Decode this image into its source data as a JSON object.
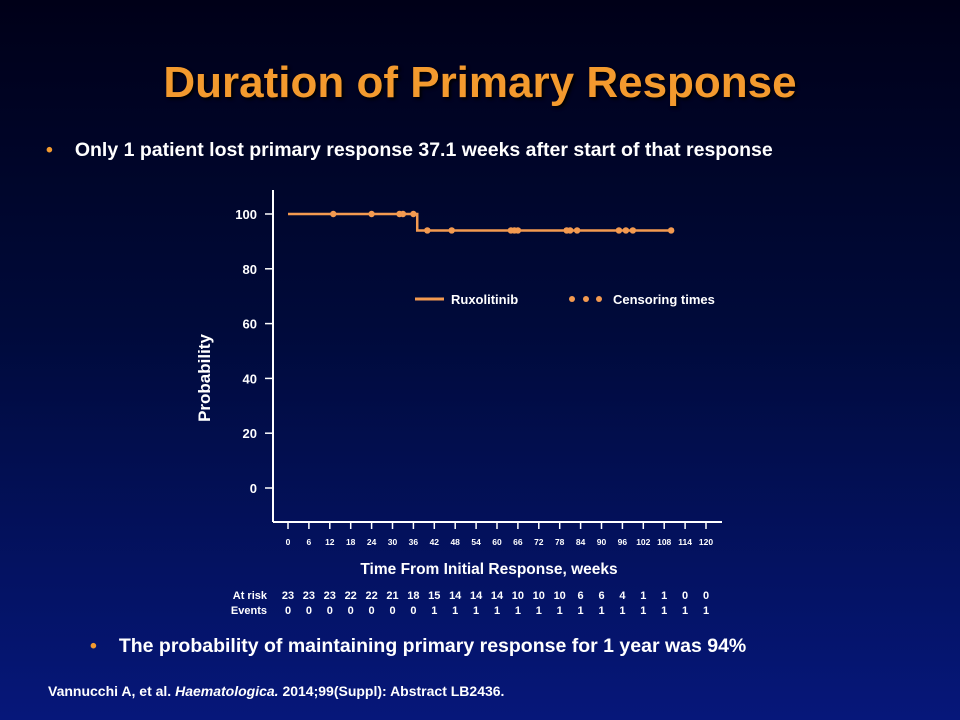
{
  "slide": {
    "title": "Duration of Primary Response",
    "bullet_top": "Only 1 patient lost primary response 37.1 weeks after start of that response",
    "bullet_bottom": "The probability of maintaining primary response for 1 year was 94%",
    "bullet_glyph": "•",
    "citation": {
      "authors": "Vannucchi A, et al. ",
      "journal": "Haematologica.",
      "rest": " 2014;99(Suppl): Abstract LB2436."
    }
  },
  "chart_data": {
    "type": "line",
    "title": "",
    "xlabel": "Time From Initial Response, weeks",
    "ylabel": "Probability",
    "xlim": [
      0,
      120
    ],
    "ylim": [
      0,
      100
    ],
    "x_ticks": [
      0,
      6,
      12,
      18,
      24,
      30,
      36,
      42,
      48,
      54,
      60,
      66,
      72,
      78,
      84,
      90,
      96,
      102,
      108,
      114,
      120
    ],
    "y_ticks": [
      0,
      20,
      40,
      60,
      80,
      100
    ],
    "grid": false,
    "line_color": "#f39a50",
    "legend": {
      "position": "top-right",
      "line_label": "Ruxolitinib",
      "censor_label": "Censoring times"
    },
    "series": [
      {
        "name": "Ruxolitinib",
        "step_points": [
          [
            0,
            100
          ],
          [
            37.1,
            100
          ],
          [
            37.1,
            94
          ],
          [
            110,
            94
          ]
        ],
        "censor_times": [
          [
            13,
            100
          ],
          [
            24,
            100
          ],
          [
            32,
            100
          ],
          [
            33,
            100
          ],
          [
            36,
            100
          ],
          [
            40,
            94
          ],
          [
            47,
            94
          ],
          [
            64,
            94
          ],
          [
            65,
            94
          ],
          [
            66,
            94
          ],
          [
            80,
            94
          ],
          [
            81,
            94
          ],
          [
            83,
            94
          ],
          [
            95,
            94
          ],
          [
            97,
            94
          ],
          [
            99,
            94
          ],
          [
            110,
            94
          ]
        ]
      }
    ],
    "risk_table": {
      "row_labels": [
        "At risk",
        "Events"
      ],
      "at_risk": [
        "23",
        "23",
        "23",
        "22",
        "22",
        "21",
        "18",
        "15",
        "14",
        "14",
        "14",
        "10",
        "10",
        "10",
        "6",
        "6",
        "4",
        "1",
        "1",
        "0",
        "0"
      ],
      "events": [
        "0",
        "0",
        "0",
        "0",
        "0",
        "0",
        "0",
        "1",
        "1",
        "1",
        "1",
        "1",
        "1",
        "1",
        "1",
        "1",
        "1",
        "1",
        "1",
        "1",
        "1"
      ]
    }
  }
}
